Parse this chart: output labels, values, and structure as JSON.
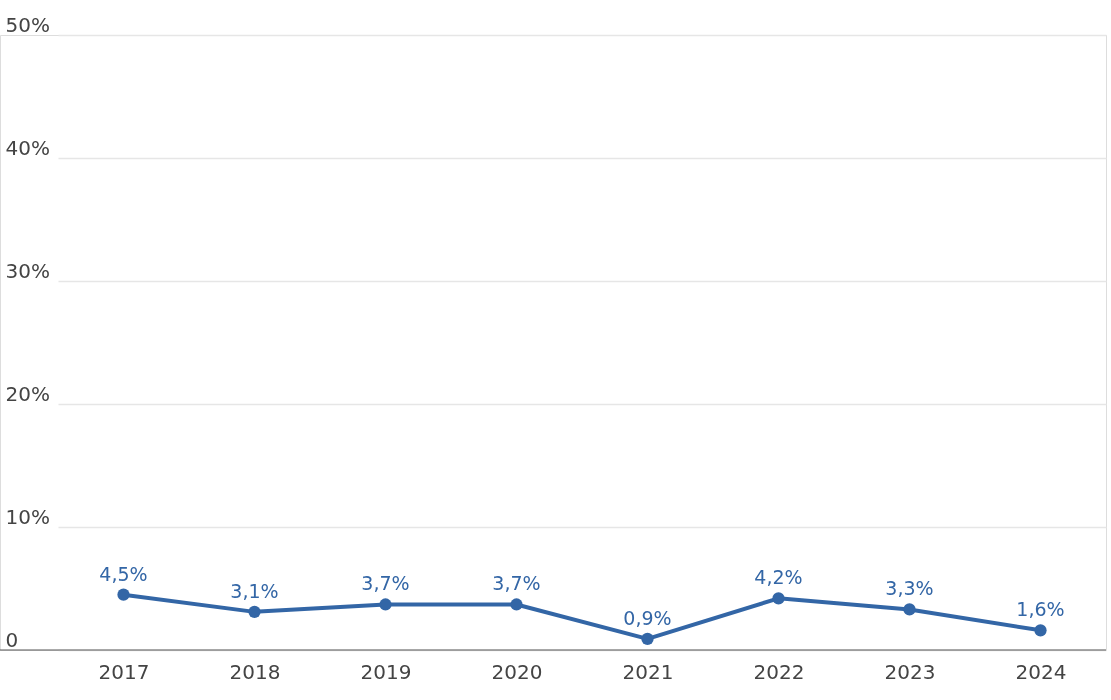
{
  "chart_data": {
    "type": "line",
    "categories": [
      "2017",
      "2018",
      "2019",
      "2020",
      "2021",
      "2022",
      "2023",
      "2024"
    ],
    "series": [
      {
        "color": "#3366a6",
        "values": [
          4.5,
          3.1,
          3.7,
          3.7,
          0.9,
          4.2,
          3.3,
          1.6
        ],
        "value_labels": [
          "4,5%",
          "3,1%",
          "3,7%",
          "3,7%",
          "0,9%",
          "4,2%",
          "3,3%",
          "1,6%"
        ]
      }
    ],
    "ylim": [
      0,
      50
    ],
    "yticks": [
      {
        "value": 0,
        "label": "0"
      },
      {
        "value": 10,
        "label": "10%"
      },
      {
        "value": 20,
        "label": "20%"
      },
      {
        "value": 30,
        "label": "30%"
      },
      {
        "value": 40,
        "label": "40%"
      },
      {
        "value": 50,
        "label": "50%"
      }
    ],
    "grid": "y",
    "marker": "circle",
    "line_style": "solid"
  }
}
